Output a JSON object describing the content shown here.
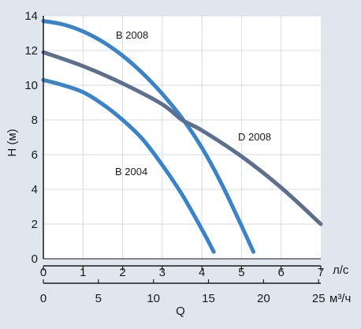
{
  "colors": {
    "background": "#dfe6ee",
    "plot_area": "#ffffff",
    "gridline": "#d4dbe3",
    "axis": "#1a1a1a",
    "blue_curve": "#3a83c8",
    "grey_curve": "#5c6f8e"
  },
  "chart_data": {
    "type": "line",
    "ylabel": "H (м)",
    "xlabel": "Q",
    "ylim": [
      0,
      14
    ],
    "yticks": [
      "0",
      "2",
      "4",
      "6",
      "8",
      "10",
      "12",
      "14"
    ],
    "x_axis_primary": {
      "unit": "л/с",
      "range": [
        0,
        7
      ],
      "ticks": [
        "0",
        "1",
        "2",
        "3",
        "4",
        "5",
        "6",
        "7"
      ]
    },
    "x_axis_secondary": {
      "unit": "м³/ч",
      "range": [
        0,
        25.2
      ],
      "ticks": [
        "0",
        "5",
        "10",
        "15",
        "20",
        "25"
      ],
      "tick_values": [
        0,
        5,
        10,
        15,
        20,
        25
      ]
    },
    "grid": true,
    "series": [
      {
        "name": "B 2008",
        "color": "#3a83c8",
        "x": [
          0,
          0.5,
          1,
          1.5,
          2,
          2.5,
          3,
          3.5,
          4,
          4.5,
          5,
          5.3
        ],
        "y": [
          13.7,
          13.5,
          13.1,
          12.5,
          11.7,
          10.7,
          9.5,
          8.1,
          6.4,
          4.3,
          1.9,
          0.4
        ]
      },
      {
        "name": "D 2008",
        "color": "#5c6f8e",
        "x": [
          0,
          1,
          2,
          3,
          3.5,
          4,
          5,
          6,
          7
        ],
        "y": [
          11.9,
          11.1,
          10.1,
          8.9,
          8.0,
          7.4,
          5.9,
          4.1,
          2.0
        ]
      },
      {
        "name": "B 2004",
        "color": "#3a83c8",
        "x": [
          0,
          0.5,
          1,
          1.5,
          2,
          2.5,
          3,
          3.5,
          4,
          4.3
        ],
        "y": [
          10.3,
          10.0,
          9.6,
          8.9,
          8.0,
          6.9,
          5.4,
          3.7,
          1.7,
          0.4
        ]
      }
    ]
  }
}
